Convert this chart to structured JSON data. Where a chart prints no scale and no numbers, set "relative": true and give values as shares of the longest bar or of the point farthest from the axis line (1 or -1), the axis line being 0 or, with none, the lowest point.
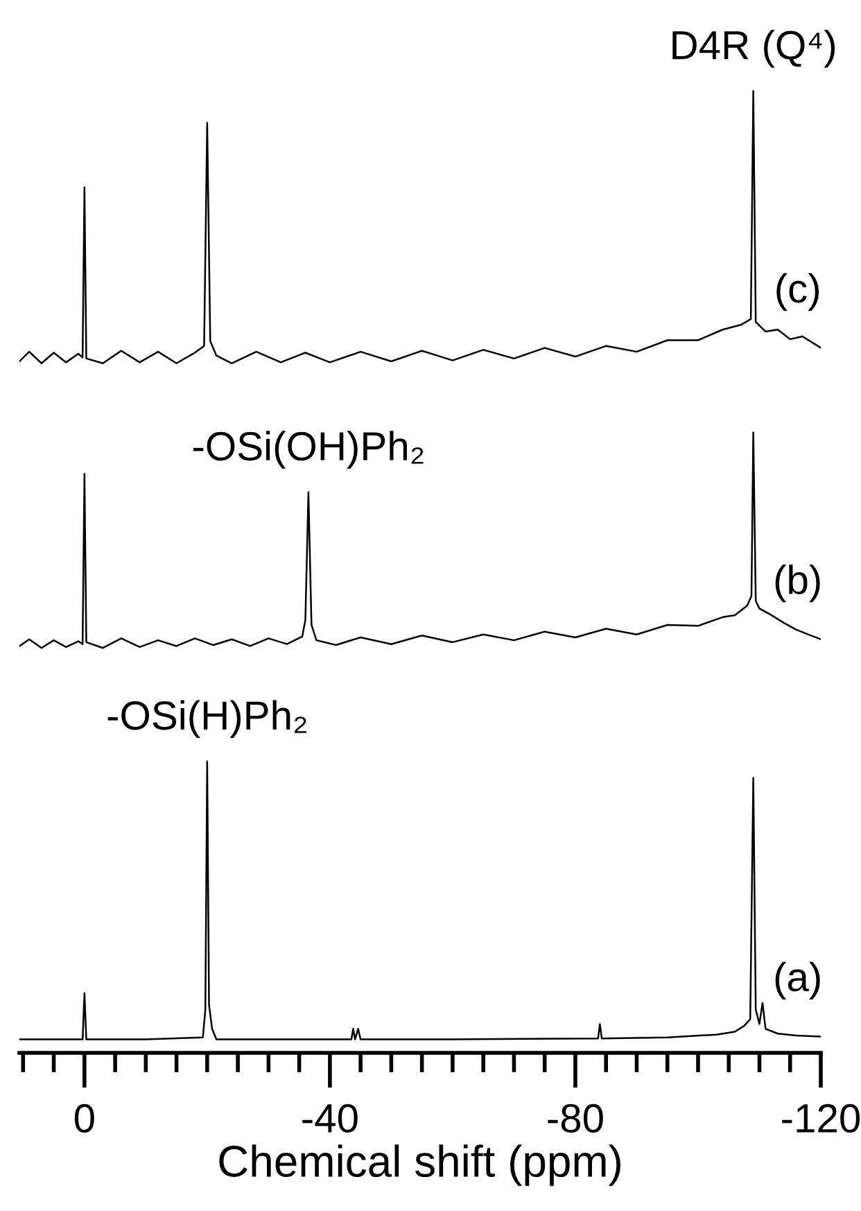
{
  "chart_data": {
    "type": "line",
    "relative": true,
    "xlabel": "Chemical shift (ppm)",
    "xlim": [
      10.6,
      -120
    ],
    "xticks": [
      {
        "value": 10,
        "label": null
      },
      {
        "value": 5,
        "label": null
      },
      0,
      {
        "value": -5,
        "label": null
      },
      {
        "value": -10,
        "label": null
      },
      {
        "value": -15,
        "label": null
      },
      {
        "value": -20,
        "label": null
      },
      {
        "value": -25,
        "label": null
      },
      {
        "value": -30,
        "label": null
      },
      {
        "value": -35,
        "label": null
      },
      {
        "value": -40,
        "label": "-40"
      },
      {
        "value": -45,
        "label": null
      },
      {
        "value": -50,
        "label": null
      },
      {
        "value": -55,
        "label": null
      },
      {
        "value": -60,
        "label": null
      },
      {
        "value": -65,
        "label": null
      },
      {
        "value": -70,
        "label": null
      },
      {
        "value": -75,
        "label": null
      },
      {
        "value": -80,
        "label": "-80"
      },
      {
        "value": -85,
        "label": null
      },
      {
        "value": -90,
        "label": null
      },
      {
        "value": -95,
        "label": null
      },
      {
        "value": -100,
        "label": null
      },
      {
        "value": -105,
        "label": null
      },
      {
        "value": -110,
        "label": null
      },
      {
        "value": -115,
        "label": null
      },
      {
        "value": -120,
        "label": "-120"
      }
    ],
    "series": [
      {
        "color": "#000000",
        "x": [
          10.6,
          5,
          1,
          0.3,
          0,
          -0.3,
          -10,
          -19.3,
          -19.7,
          -20,
          -20.3,
          -20.8,
          -21.5,
          -30,
          -43.5,
          -43.8,
          -44.1,
          -44.6,
          -45,
          -60,
          -83.7,
          -84,
          -84.3,
          -95,
          -103,
          -106,
          -107.5,
          -108.5,
          -109,
          -109.4,
          -110,
          -110.5,
          -111,
          -113,
          -116,
          -120
        ],
        "values": [
          0.014,
          0.014,
          0.014,
          0.014,
          0.062,
          0.014,
          0.014,
          0.016,
          0.045,
          0.303,
          0.05,
          0.025,
          0.014,
          0.014,
          0.014,
          0.025,
          0.014,
          0.025,
          0.014,
          0.014,
          0.015,
          0.03,
          0.015,
          0.016,
          0.019,
          0.022,
          0.028,
          0.035,
          0.286,
          0.045,
          0.03,
          0.052,
          0.025,
          0.02,
          0.018,
          0.017
        ]
      },
      {
        "color": "#000000",
        "x": [
          10.6,
          9,
          7,
          5,
          3,
          1,
          0.3,
          0,
          -0.3,
          -3,
          -6,
          -9,
          -12,
          -15,
          -18,
          -21,
          -24,
          -27,
          -30,
          -33,
          -35.5,
          -36,
          -36.5,
          -37,
          -37.8,
          -41,
          -45,
          -50,
          -55,
          -60,
          -65,
          -70,
          -75,
          -80,
          -85,
          -90,
          -95,
          -100,
          -104,
          -106,
          -108,
          -108.7,
          -109,
          -109.4,
          -110,
          -112,
          -114,
          -116,
          -118,
          -120
        ],
        "values": [
          0.423,
          0.43,
          0.421,
          0.429,
          0.422,
          0.428,
          0.425,
          0.602,
          0.427,
          0.421,
          0.431,
          0.422,
          0.429,
          0.423,
          0.431,
          0.424,
          0.43,
          0.423,
          0.431,
          0.425,
          0.433,
          0.45,
          0.583,
          0.445,
          0.429,
          0.424,
          0.432,
          0.425,
          0.434,
          0.427,
          0.435,
          0.429,
          0.438,
          0.432,
          0.441,
          0.435,
          0.445,
          0.444,
          0.453,
          0.455,
          0.465,
          0.475,
          0.645,
          0.47,
          0.462,
          0.455,
          0.447,
          0.44,
          0.435,
          0.43
        ]
      },
      {
        "color": "#000000",
        "x": [
          10.6,
          9,
          7,
          5,
          3,
          1,
          0.3,
          0,
          -0.3,
          -3,
          -6,
          -9,
          -12,
          -15,
          -18,
          -19.5,
          -20,
          -20.5,
          -21.5,
          -24,
          -28,
          -32,
          -36,
          -40,
          -45,
          -50,
          -55,
          -60,
          -65,
          -70,
          -75,
          -80,
          -85,
          -90,
          -95,
          -100,
          -104,
          -107,
          -108.6,
          -109,
          -109.4,
          -111,
          -113,
          -115,
          -117,
          -120
        ],
        "values": [
          0.719,
          0.729,
          0.717,
          0.728,
          0.718,
          0.727,
          0.723,
          0.9,
          0.722,
          0.717,
          0.73,
          0.718,
          0.729,
          0.717,
          0.728,
          0.735,
          0.967,
          0.74,
          0.725,
          0.717,
          0.729,
          0.718,
          0.728,
          0.718,
          0.729,
          0.719,
          0.73,
          0.72,
          0.731,
          0.722,
          0.733,
          0.724,
          0.735,
          0.729,
          0.741,
          0.741,
          0.752,
          0.757,
          0.763,
          1.0,
          0.76,
          0.75,
          0.752,
          0.742,
          0.745,
          0.733
        ]
      }
    ],
    "annotations": [
      {
        "text": "D4R (Q⁴)",
        "x": -109,
        "y": 1.0
      },
      "(c)",
      {
        "text": "-OSi(OH)Ph₂",
        "x": -36.5,
        "y": 0.583
      },
      "(b)",
      {
        "text": "-OSi(H)Ph₂",
        "x": -20,
        "y": 0.303
      },
      "(a)"
    ]
  }
}
